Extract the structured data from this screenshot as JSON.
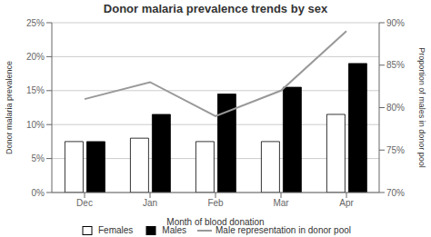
{
  "chart_data": {
    "type": "bar",
    "title": "Donor malaria prevalence trends by sex",
    "xlabel": "Month of blood donation",
    "ylabel": "Donor malaria prevalence",
    "y2label": "Proportion of males in donor pool",
    "categories": [
      "Dec",
      "Jan",
      "Feb",
      "Mar",
      "Apr"
    ],
    "series": [
      {
        "name": "Females",
        "type": "bar",
        "color": "#ffffff",
        "values": [
          7.5,
          8.0,
          7.5,
          7.5,
          11.5
        ]
      },
      {
        "name": "Males",
        "type": "bar",
        "color": "#000000",
        "values": [
          7.5,
          11.5,
          14.5,
          15.5,
          19.0
        ]
      },
      {
        "name": "Male representation in donor pool",
        "type": "line",
        "color": "#999999",
        "axis": "y2",
        "values": [
          81.0,
          83.0,
          79.0,
          82.0,
          89.0
        ]
      }
    ],
    "ylim": [
      0,
      25
    ],
    "yticks": [
      {
        "value": 0,
        "label": "0%"
      },
      {
        "value": 5,
        "label": "5%"
      },
      {
        "value": 10,
        "label": "10%"
      },
      {
        "value": 15,
        "label": "15%"
      },
      {
        "value": 20,
        "label": "20%"
      },
      {
        "value": 25,
        "label": "25%"
      }
    ],
    "y2lim": [
      70,
      90
    ],
    "y2ticks": [
      {
        "value": 70,
        "label": "70%"
      },
      {
        "value": 75,
        "label": "75%"
      },
      {
        "value": 80,
        "label": "80%"
      },
      {
        "value": 85,
        "label": "85%"
      },
      {
        "value": 90,
        "label": "90%"
      }
    ],
    "grid": true,
    "legend": "bottom"
  }
}
